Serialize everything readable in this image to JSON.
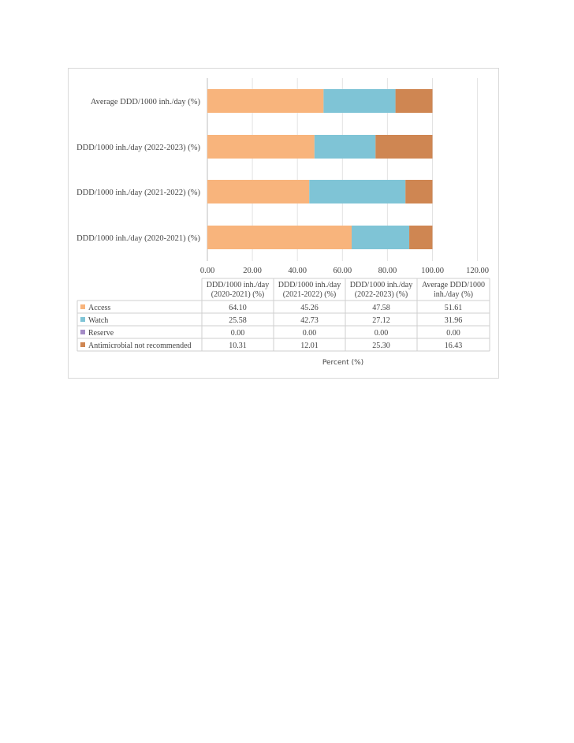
{
  "chart_data": {
    "type": "bar",
    "orientation": "horizontal",
    "stacked": true,
    "categories": [
      "DDD/1000 inh./day (2020-2021) (%)",
      "DDD/1000 inh./day (2021-2022) (%)",
      "DDD/1000 inh./day (2022-2023) (%)",
      "Average DDD/1000 inh./day  (%)"
    ],
    "series": [
      {
        "name": "Access",
        "color": "#f8b47c",
        "values": [
          64.1,
          45.26,
          47.58,
          51.61
        ],
        "labels": [
          "64.10",
          "45.26",
          "47.58",
          "51.61"
        ]
      },
      {
        "name": "Watch",
        "color": "#7fc4d6",
        "values": [
          25.58,
          42.73,
          27.12,
          31.96
        ],
        "labels": [
          "25.58",
          "42.73",
          "27.12",
          "31.96"
        ]
      },
      {
        "name": "Reserve",
        "color": "#a48bc6",
        "values": [
          0.0,
          0.0,
          0.0,
          0.0
        ],
        "labels": [
          "0.00",
          "0.00",
          "0.00",
          "0.00"
        ]
      },
      {
        "name": "Antimicrobial not recommended",
        "color": "#cf8652",
        "values": [
          10.31,
          12.01,
          25.3,
          16.43
        ],
        "labels": [
          "10.31",
          "12.01",
          "25.30",
          "16.43"
        ]
      }
    ],
    "table_headers": [
      [
        "DDD/1000 inh./day",
        "(2020-2021) (%)"
      ],
      [
        "DDD/1000 inh./day",
        "(2021-2022) (%)"
      ],
      [
        "DDD/1000 inh./day",
        "(2022-2023) (%)"
      ],
      [
        "Average DDD/1000",
        "inh./day  (%)"
      ]
    ],
    "xlim": [
      0,
      120
    ],
    "xticks": [
      "0.00",
      "20.00",
      "40.00",
      "60.00",
      "80.00",
      "100.00",
      "120.00"
    ],
    "xlabel": "Percent (%)",
    "title": "",
    "grid": "vertical",
    "legend": "data table below chart"
  }
}
